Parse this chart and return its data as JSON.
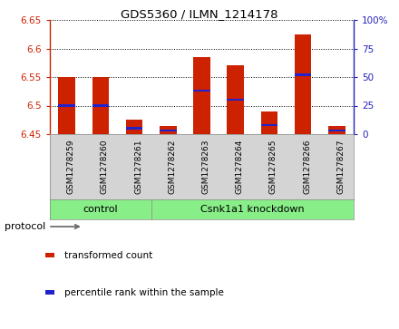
{
  "title": "GDS5360 / ILMN_1214178",
  "samples": [
    "GSM1278259",
    "GSM1278260",
    "GSM1278261",
    "GSM1278262",
    "GSM1278263",
    "GSM1278264",
    "GSM1278265",
    "GSM1278266",
    "GSM1278267"
  ],
  "red_values": [
    6.55,
    6.55,
    6.475,
    6.465,
    6.585,
    6.57,
    6.49,
    6.625,
    6.465
  ],
  "blue_values_pct": [
    25,
    25,
    5,
    3,
    38,
    30,
    8,
    52,
    3
  ],
  "ylim_left": [
    6.45,
    6.65
  ],
  "ylim_right": [
    0,
    100
  ],
  "yticks_left": [
    6.45,
    6.5,
    6.55,
    6.6,
    6.65
  ],
  "yticks_right": [
    0,
    25,
    50,
    75,
    100
  ],
  "ytick_labels_right": [
    "0",
    "25",
    "50",
    "75",
    "100%"
  ],
  "bar_width": 0.5,
  "bar_color": "#cc2200",
  "blue_color": "#2222cc",
  "base_value": 6.45,
  "ctrl_count": 3,
  "kd_count": 6,
  "group_labels": [
    "control",
    "Csnk1a1 knockdown"
  ],
  "group_color": "#88ee88",
  "protocol_label": "protocol",
  "legend_items": [
    {
      "color": "#cc2200",
      "label": "transformed count"
    },
    {
      "color": "#2222cc",
      "label": "percentile rank within the sample"
    }
  ],
  "plot_bg": "#ffffff",
  "xlabel_bg": "#d4d4d4",
  "spine_color": "#888888",
  "grid_color": "#000000",
  "left_axis_color": "#cc2200",
  "right_axis_color": "#2222bb"
}
